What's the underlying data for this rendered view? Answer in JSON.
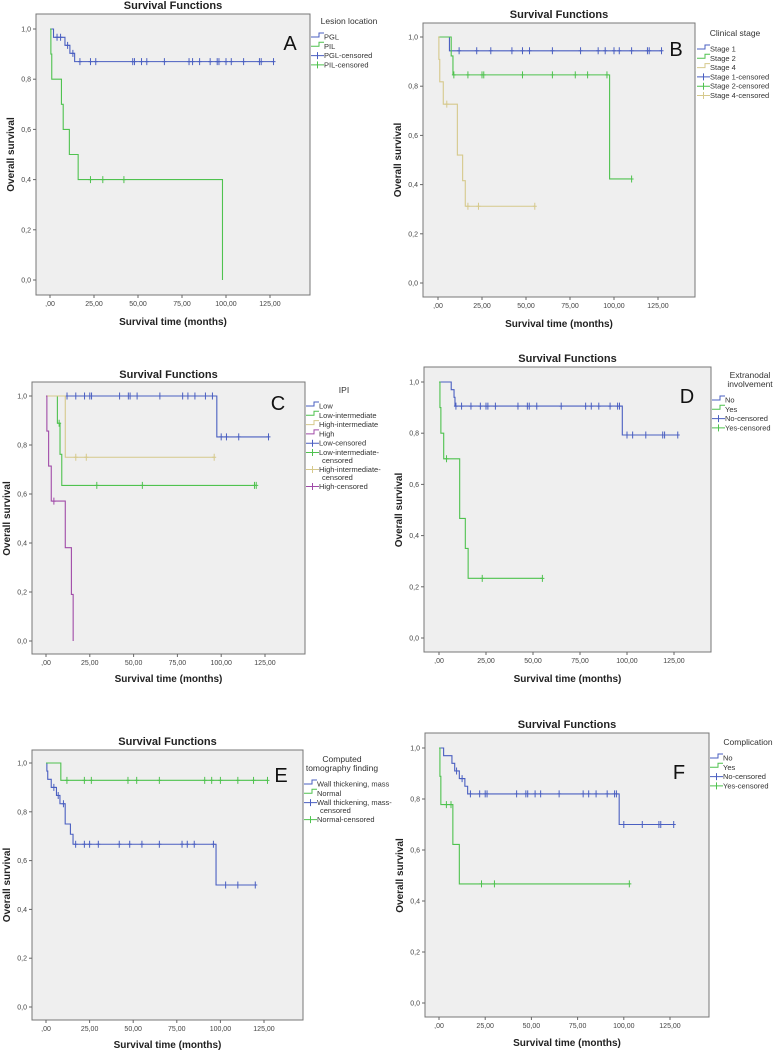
{
  "colors": {
    "blue": "#4a5fc1",
    "green": "#4fc24f",
    "tan": "#d6c98c",
    "purple": "#a04ba8",
    "plot_bg": "#efefef"
  },
  "chart_data": [
    {
      "type": "line",
      "panel_letter": "A",
      "title": "Survival Functions",
      "xlabel": "Survival time (months)",
      "ylabel": "Overall survival",
      "xlim": [
        0,
        125
      ],
      "ylim": [
        0,
        1
      ],
      "xticks": [
        ",00",
        "25,00",
        "50,00",
        "75,00",
        "100,00",
        "125,00"
      ],
      "yticks": [
        "0,0",
        "0,2",
        "0,4",
        "0,6",
        "0,8",
        "1,0"
      ],
      "legend": {
        "title": [
          "Lesion location"
        ],
        "position": "right",
        "entries": [
          {
            "label": "PGL",
            "color": "blue",
            "kind": "line"
          },
          {
            "label": "PIL",
            "color": "green",
            "kind": "line"
          },
          {
            "label": "PGL-censored",
            "color": "blue",
            "kind": "censored"
          },
          {
            "label": "PIL-censored",
            "color": "green",
            "kind": "censored"
          }
        ]
      },
      "series": [
        {
          "name": "PGL",
          "color": "blue",
          "steps": [
            [
              2,
              0.967
            ],
            [
              8.5,
              0.935
            ],
            [
              11.3,
              0.903
            ],
            [
              14,
              0.87
            ]
          ],
          "censored": [
            4,
            6,
            10,
            13,
            17,
            23,
            26,
            47,
            48,
            52,
            55,
            65,
            79,
            81,
            85,
            91,
            95,
            96,
            100,
            103,
            110,
            119,
            120,
            127
          ]
        },
        {
          "name": "PIL",
          "color": "green",
          "steps": [
            [
              0.5,
              0.9
            ],
            [
              1,
              0.8
            ],
            [
              6.5,
              0.7
            ],
            [
              7.5,
              0.6
            ],
            [
              11,
              0.5
            ],
            [
              16,
              0.4
            ],
            [
              98,
              0.0
            ]
          ],
          "censored": [
            23,
            30,
            42
          ]
        }
      ]
    },
    {
      "type": "line",
      "panel_letter": "B",
      "title": "Survival Functions",
      "xlabel": "Survival time (months)",
      "ylabel": "Overall survival",
      "xlim": [
        0,
        125
      ],
      "ylim": [
        0,
        1
      ],
      "xticks": [
        ",00",
        "25,00",
        "50,00",
        "75,00",
        "100,00",
        "125,00"
      ],
      "yticks": [
        "0,0",
        "0,2",
        "0,4",
        "0,6",
        "0,8",
        "1,0"
      ],
      "legend": {
        "title": [
          "Clinical stage"
        ],
        "position": "right",
        "entries": [
          {
            "label": "Stage 1",
            "color": "blue",
            "kind": "line"
          },
          {
            "label": "Stage 2",
            "color": "green",
            "kind": "line"
          },
          {
            "label": "Stage 4",
            "color": "tan",
            "kind": "line"
          },
          {
            "label": "Stage 1-censored",
            "color": "blue",
            "kind": "censored"
          },
          {
            "label": "Stage 2-censored",
            "color": "green",
            "kind": "censored"
          },
          {
            "label": "Stage 4-censored",
            "color": "tan",
            "kind": "censored"
          }
        ]
      },
      "series": [
        {
          "name": "Stage 1",
          "color": "blue",
          "steps": [
            [
              6.5,
              0.944
            ]
          ],
          "censored": [
            12,
            22,
            30,
            42,
            48,
            52,
            65,
            81,
            91,
            95,
            100,
            103,
            110,
            119,
            120,
            127
          ]
        },
        {
          "name": "Stage 2",
          "color": "green",
          "steps": [
            [
              7.5,
              0.923
            ],
            [
              8.5,
              0.846
            ],
            [
              97.5,
              0.423
            ]
          ],
          "censored": [
            9,
            17,
            25,
            26,
            48,
            65,
            78,
            85,
            96,
            110
          ]
        },
        {
          "name": "Stage 4",
          "color": "tan",
          "steps": [
            [
              0.5,
              0.909
            ],
            [
              1,
              0.818
            ],
            [
              3,
              0.727
            ],
            [
              11,
              0.52
            ],
            [
              14,
              0.416
            ],
            [
              15.5,
              0.312
            ]
          ],
          "censored": [
            5,
            17,
            23,
            55
          ]
        }
      ]
    },
    {
      "type": "line",
      "panel_letter": "C",
      "title": "Survival Functions",
      "xlabel": "Survival time (months)",
      "ylabel": "Overall survival",
      "xlim": [
        0,
        125
      ],
      "ylim": [
        0,
        1
      ],
      "xticks": [
        ",00",
        "25,00",
        "50,00",
        "75,00",
        "100,00",
        "125,00"
      ],
      "yticks": [
        "0,0",
        "0,2",
        "0,4",
        "0,6",
        "0,8",
        "1,0"
      ],
      "legend": {
        "title": [
          "IPI"
        ],
        "position": "right",
        "entries": [
          {
            "label": "Low",
            "color": "blue",
            "kind": "line"
          },
          {
            "label": "Low-intermediate",
            "color": "green",
            "kind": "line"
          },
          {
            "label": "High-intermediate",
            "color": "tan",
            "kind": "line"
          },
          {
            "label": "High",
            "color": "purple",
            "kind": "line"
          },
          {
            "label": "Low-censored",
            "color": "blue",
            "kind": "censored"
          },
          {
            "label": "Low-intermediate-censored",
            "color": "green",
            "kind": "censored"
          },
          {
            "label": "High-intermediate-censored",
            "color": "tan",
            "kind": "censored"
          },
          {
            "label": "High-censored",
            "color": "purple",
            "kind": "censored"
          }
        ]
      },
      "series": [
        {
          "name": "Low",
          "color": "blue",
          "steps": [
            [
              97.5,
              0.833
            ]
          ],
          "censored": [
            12,
            17,
            22,
            25,
            26,
            42,
            47,
            48,
            52,
            65,
            78,
            81,
            85,
            91,
            95,
            100,
            103,
            110,
            127
          ]
        },
        {
          "name": "Low-intermediate",
          "color": "green",
          "steps": [
            [
              6.5,
              0.889
            ],
            [
              8,
              0.762
            ],
            [
              9,
              0.635
            ]
          ],
          "censored": [
            7.5,
            29,
            55,
            119,
            120
          ]
        },
        {
          "name": "High-intermediate",
          "color": "tan",
          "steps": [
            [
              11,
              0.75
            ]
          ],
          "censored": [
            17,
            23,
            96
          ]
        },
        {
          "name": "High",
          "color": "purple",
          "steps": [
            [
              0.5,
              0.857
            ],
            [
              1.5,
              0.714
            ],
            [
              3,
              0.571
            ],
            [
              11,
              0.381
            ],
            [
              14.5,
              0.19
            ],
            [
              15.5,
              0.0
            ]
          ],
          "censored": [
            4.5
          ]
        }
      ]
    },
    {
      "type": "line",
      "panel_letter": "D",
      "title": "Survival Functions",
      "xlabel": "Survival time (months)",
      "ylabel": "Overall survival",
      "xlim": [
        0,
        125
      ],
      "ylim": [
        0,
        1
      ],
      "xticks": [
        ",00",
        "25,00",
        "50,00",
        "75,00",
        "100,00",
        "125,00"
      ],
      "yticks": [
        "0,0",
        "0,2",
        "0,4",
        "0,6",
        "0,8",
        "1,0"
      ],
      "legend": {
        "title": [
          "Extranodal",
          "involvement"
        ],
        "position": "right",
        "entries": [
          {
            "label": "No",
            "color": "blue",
            "kind": "line"
          },
          {
            "label": "Yes",
            "color": "green",
            "kind": "line"
          },
          {
            "label": "No-censored",
            "color": "blue",
            "kind": "censored"
          },
          {
            "label": "Yes-censored",
            "color": "green",
            "kind": "censored"
          }
        ]
      },
      "series": [
        {
          "name": "No",
          "color": "blue",
          "steps": [
            [
              6.5,
              0.97
            ],
            [
              8,
              0.94
            ],
            [
              8.5,
              0.906
            ],
            [
              97.5,
              0.793
            ]
          ],
          "censored": [
            9,
            12,
            17,
            22,
            25,
            26,
            30,
            42,
            47,
            48,
            52,
            65,
            78,
            81,
            85,
            91,
            95,
            96,
            100,
            103,
            110,
            119,
            120,
            127
          ]
        },
        {
          "name": "Yes",
          "color": "green",
          "steps": [
            [
              0.5,
              0.9
            ],
            [
              1,
              0.8
            ],
            [
              2.5,
              0.7
            ],
            [
              11,
              0.467
            ],
            [
              14,
              0.35
            ],
            [
              15.5,
              0.233
            ]
          ],
          "censored": [
            4,
            23,
            55
          ]
        }
      ]
    },
    {
      "type": "line",
      "panel_letter": "E",
      "title": "Survival Functions",
      "xlabel": "Survival time (months)",
      "ylabel": "Overall survival",
      "xlim": [
        0,
        125
      ],
      "ylim": [
        0,
        1
      ],
      "xticks": [
        ",00",
        "25,00",
        "50,00",
        "75,00",
        "100,00",
        "125,00"
      ],
      "yticks": [
        "0,0",
        "0,2",
        "0,4",
        "0,6",
        "0,8",
        "1,0"
      ],
      "legend": {
        "title": [
          "Computed",
          "tomography finding"
        ],
        "position": "right",
        "entries": [
          {
            "label": "Wall thickening, mass",
            "color": "blue",
            "kind": "line"
          },
          {
            "label": "Normal",
            "color": "green",
            "kind": "line"
          },
          {
            "label": "Wall thickening, mass-censored",
            "color": "blue",
            "kind": "censored"
          },
          {
            "label": "Normal-censored",
            "color": "green",
            "kind": "censored"
          }
        ]
      },
      "series": [
        {
          "name": "Wall thickening, mass",
          "color": "blue",
          "steps": [
            [
              0.5,
              0.967
            ],
            [
              1,
              0.933
            ],
            [
              3,
              0.9
            ],
            [
              6,
              0.867
            ],
            [
              8,
              0.833
            ],
            [
              11,
              0.75
            ],
            [
              14,
              0.708
            ],
            [
              15.5,
              0.667
            ],
            [
              97.5,
              0.5
            ]
          ],
          "censored": [
            4.5,
            7,
            10,
            17,
            22,
            25,
            30,
            42,
            48,
            55,
            65,
            78,
            81,
            85,
            96,
            103,
            110,
            120
          ]
        },
        {
          "name": "Normal",
          "color": "green",
          "steps": [
            [
              8.5,
              0.929
            ]
          ],
          "censored": [
            12,
            22,
            26,
            47,
            52,
            65,
            91,
            95,
            100,
            110,
            119,
            127
          ]
        }
      ]
    },
    {
      "type": "line",
      "panel_letter": "F",
      "title": "Survival Functions",
      "xlabel": "Survival time (months)",
      "ylabel": "Overall survival",
      "xlim": [
        0,
        125
      ],
      "ylim": [
        0,
        1
      ],
      "xticks": [
        ",00",
        "25,00",
        "50,00",
        "75,00",
        "100,00",
        "125,00"
      ],
      "yticks": [
        "0,0",
        "0,2",
        "0,4",
        "0,6",
        "0,8",
        "1,0"
      ],
      "legend": {
        "title": [
          "Complication"
        ],
        "position": "right",
        "entries": [
          {
            "label": "No",
            "color": "blue",
            "kind": "line"
          },
          {
            "label": "Yes",
            "color": "green",
            "kind": "line"
          },
          {
            "label": "No-censored",
            "color": "blue",
            "kind": "censored"
          },
          {
            "label": "Yes-censored",
            "color": "green",
            "kind": "censored"
          }
        ]
      },
      "series": [
        {
          "name": "No",
          "color": "blue",
          "steps": [
            [
              2.5,
              0.97
            ],
            [
              7,
              0.94
            ],
            [
              8.5,
              0.91
            ],
            [
              11,
              0.88
            ],
            [
              14,
              0.85
            ],
            [
              15.5,
              0.82
            ],
            [
              97.5,
              0.7
            ]
          ],
          "censored": [
            9.5,
            12.5,
            17,
            22,
            25,
            26,
            42,
            47,
            48,
            52,
            55,
            65,
            78,
            81,
            85,
            91,
            95,
            96,
            100,
            110,
            119,
            120,
            127
          ]
        },
        {
          "name": "Yes",
          "color": "green",
          "steps": [
            [
              0.5,
              0.889
            ],
            [
              1,
              0.778
            ],
            [
              7.5,
              0.622
            ],
            [
              11,
              0.467
            ]
          ],
          "censored": [
            4,
            6.5,
            23,
            30,
            103
          ]
        }
      ]
    }
  ]
}
